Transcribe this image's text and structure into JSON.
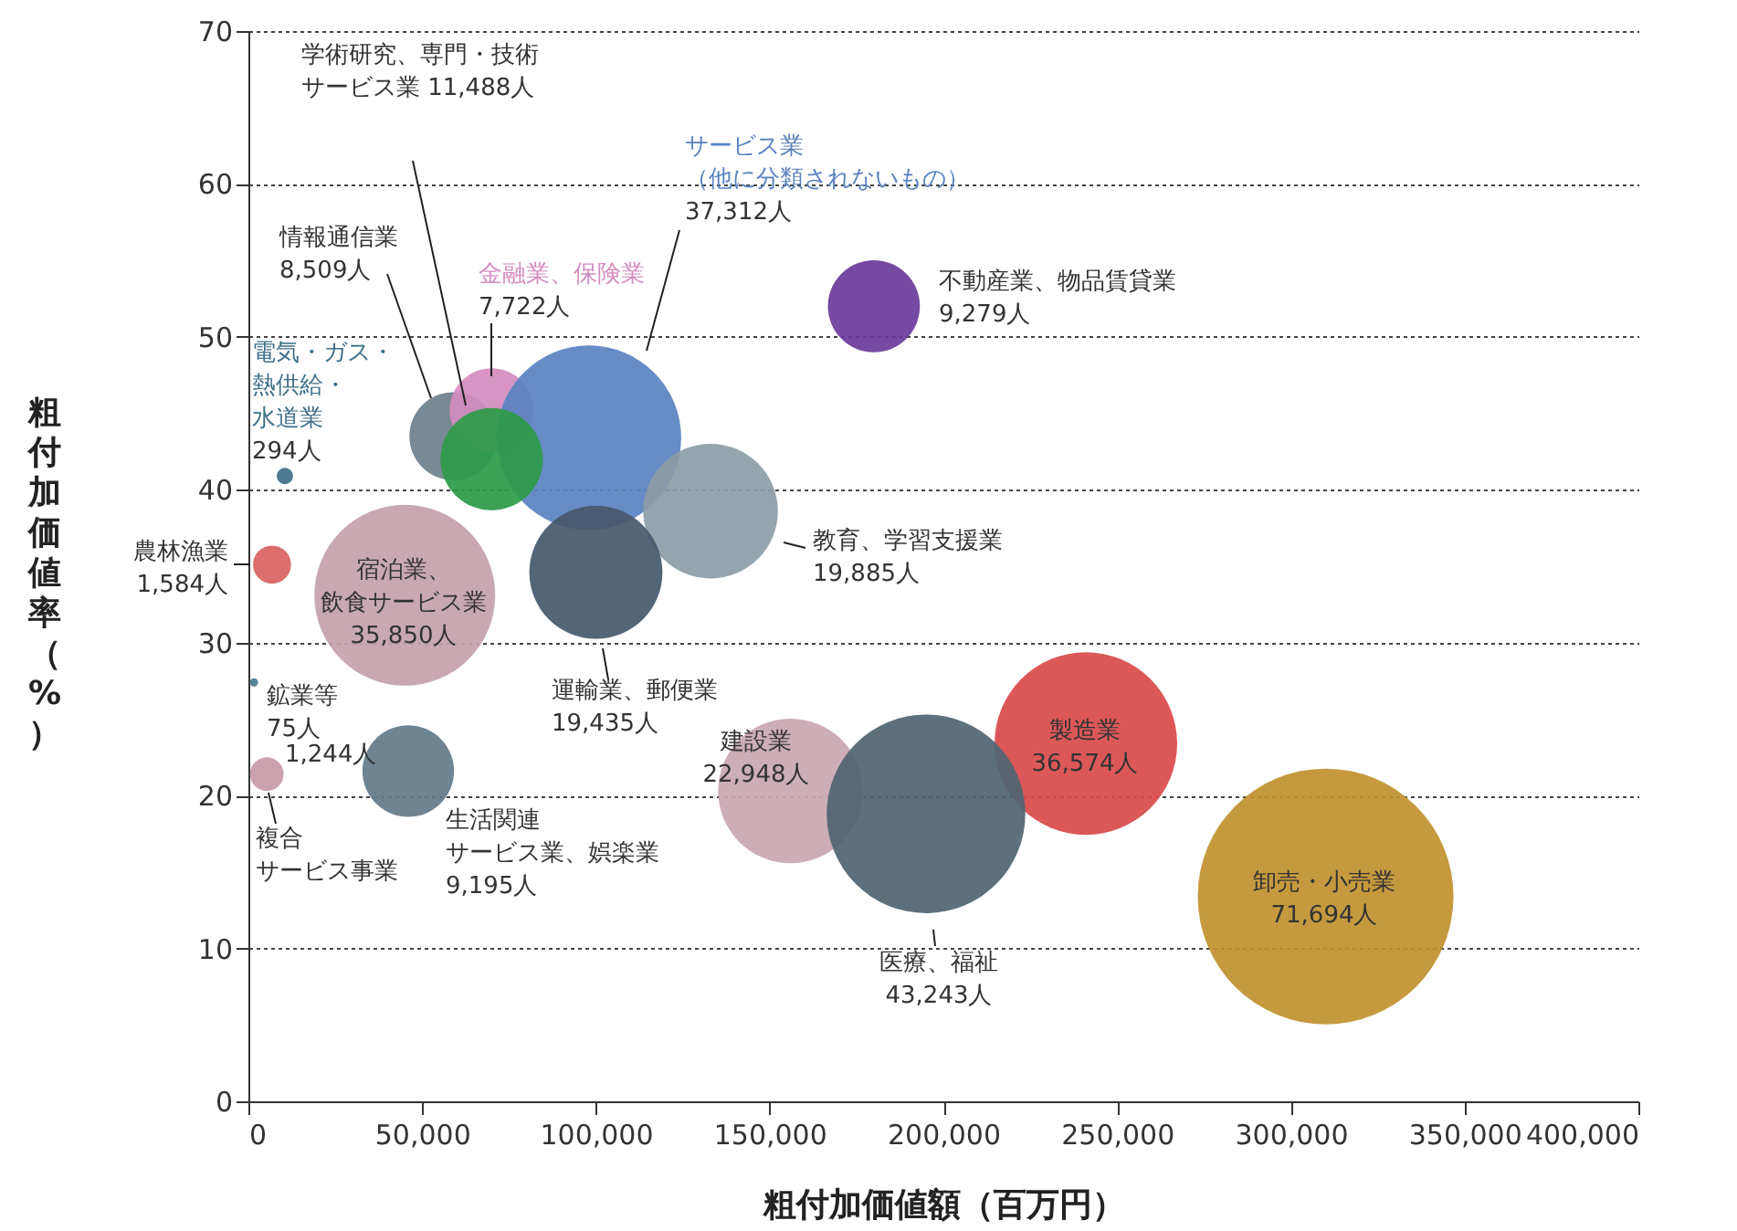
{
  "chart_data": {
    "type": "bubble",
    "xlabel": "粗付加価値額（百万円）",
    "ylabel": "粗付加価値率（%）",
    "xlim": [
      0,
      400000
    ],
    "xticks": [
      0,
      {
        "value": 50000,
        "label": "50,000"
      },
      {
        "value": 100000,
        "label": "100,000"
      },
      {
        "value": 150000,
        "label": "150,000"
      },
      {
        "value": 200000,
        "label": "200,000"
      },
      {
        "value": 250000,
        "label": "250,000"
      },
      {
        "value": 300000,
        "label": "300,000"
      },
      {
        "value": 350000,
        "label": "350,000"
      },
      {
        "value": 400000,
        "label": "400,000"
      }
    ],
    "ylim": [
      0,
      70
    ],
    "yticks": [
      0,
      10,
      20,
      30,
      40,
      50,
      60,
      70
    ],
    "grid": "y",
    "series": [
      {
        "name": "電気・ガス・熱供給・水道業",
        "color": "#3f6f8a",
        "x": [
          10500
        ],
        "values": [
          40.9
        ],
        "sizes": [
          294
        ],
        "value_labels": [
          "294人"
        ]
      },
      {
        "name": "農林漁業",
        "color": "#d96262",
        "x": [
          6800
        ],
        "values": [
          35.1
        ],
        "sizes": [
          1584
        ],
        "value_labels": [
          "1,584人"
        ]
      },
      {
        "name": "鉱業等",
        "color": "#4a7a90",
        "x": [
          1600
        ],
        "values": [
          27.4
        ],
        "sizes": [
          75
        ],
        "value_labels": [
          "75人"
        ]
      },
      {
        "name": "複合サービス事業",
        "color": "#c99aa8",
        "x": [
          5300
        ],
        "values": [
          21.4
        ],
        "sizes": [
          1244
        ],
        "value_labels": [
          "1,244人"
        ]
      },
      {
        "name": "宿泊業、飲食サービス業",
        "color": "#c4a1ab",
        "x": [
          45000
        ],
        "values": [
          33.1
        ],
        "sizes": [
          35850
        ],
        "value_labels": [
          "35,850人"
        ]
      },
      {
        "name": "生活関連サービス業、娯楽業",
        "color": "#627a88",
        "x": [
          46000
        ],
        "values": [
          21.6
        ],
        "sizes": [
          9195
        ],
        "value_labels": [
          "9,195人"
        ]
      },
      {
        "name": "情報通信業",
        "color": "#6e808c",
        "x": [
          59000
        ],
        "values": [
          43.5
        ],
        "sizes": [
          8509
        ],
        "value_labels": [
          "8,509人"
        ]
      },
      {
        "name": "金融業、保険業",
        "color": "#d48cc0",
        "x": [
          70000
        ],
        "values": [
          45.2
        ],
        "sizes": [
          7722
        ],
        "value_labels": [
          "7,722人"
        ]
      },
      {
        "name": "サービス業（他に分類されないもの）",
        "color": "#5a82c0",
        "x": [
          98000
        ],
        "values": [
          43.4
        ],
        "sizes": [
          37312
        ],
        "value_labels": [
          "37,312人"
        ]
      },
      {
        "name": "学術研究、専門・技術サービス業",
        "color": "#2e9a48",
        "x": [
          70000
        ],
        "values": [
          42.0
        ],
        "sizes": [
          11488
        ],
        "value_labels": [
          "11,488人"
        ]
      },
      {
        "name": "教育、学習支援業",
        "color": "#8c9ca6",
        "x": [
          133000
        ],
        "values": [
          38.6
        ],
        "sizes": [
          19885
        ],
        "value_labels": [
          "19,885人"
        ]
      },
      {
        "name": "運輸業、郵便業",
        "color": "#46586c",
        "x": [
          100000
        ],
        "values": [
          34.6
        ],
        "sizes": [
          19435
        ],
        "value_labels": [
          "19,435人"
        ]
      },
      {
        "name": "不動産業、物品賃貸業",
        "color": "#6a3a9a",
        "x": [
          180000
        ],
        "values": [
          52.0
        ],
        "sizes": [
          9279
        ],
        "value_labels": [
          "9,279人"
        ]
      },
      {
        "name": "建設業",
        "color": "#c9a6b0",
        "x": [
          156000
        ],
        "values": [
          20.3
        ],
        "sizes": [
          22948
        ],
        "value_labels": [
          "22,948人"
        ]
      },
      {
        "name": "製造業",
        "color": "#d94a4a",
        "x": [
          241000
        ],
        "values": [
          23.4
        ],
        "sizes": [
          36574
        ],
        "value_labels": [
          "36,574人"
        ]
      },
      {
        "name": "医療、福祉",
        "color": "#4f6470",
        "x": [
          195000
        ],
        "values": [
          18.8
        ],
        "sizes": [
          43243
        ],
        "value_labels": [
          "43,243人"
        ]
      },
      {
        "name": "卸売・小売業",
        "color": "#c0912e",
        "x": [
          310000
        ],
        "values": [
          13.4
        ],
        "sizes": [
          71694
        ],
        "value_labels": [
          "71,694人"
        ]
      }
    ]
  }
}
